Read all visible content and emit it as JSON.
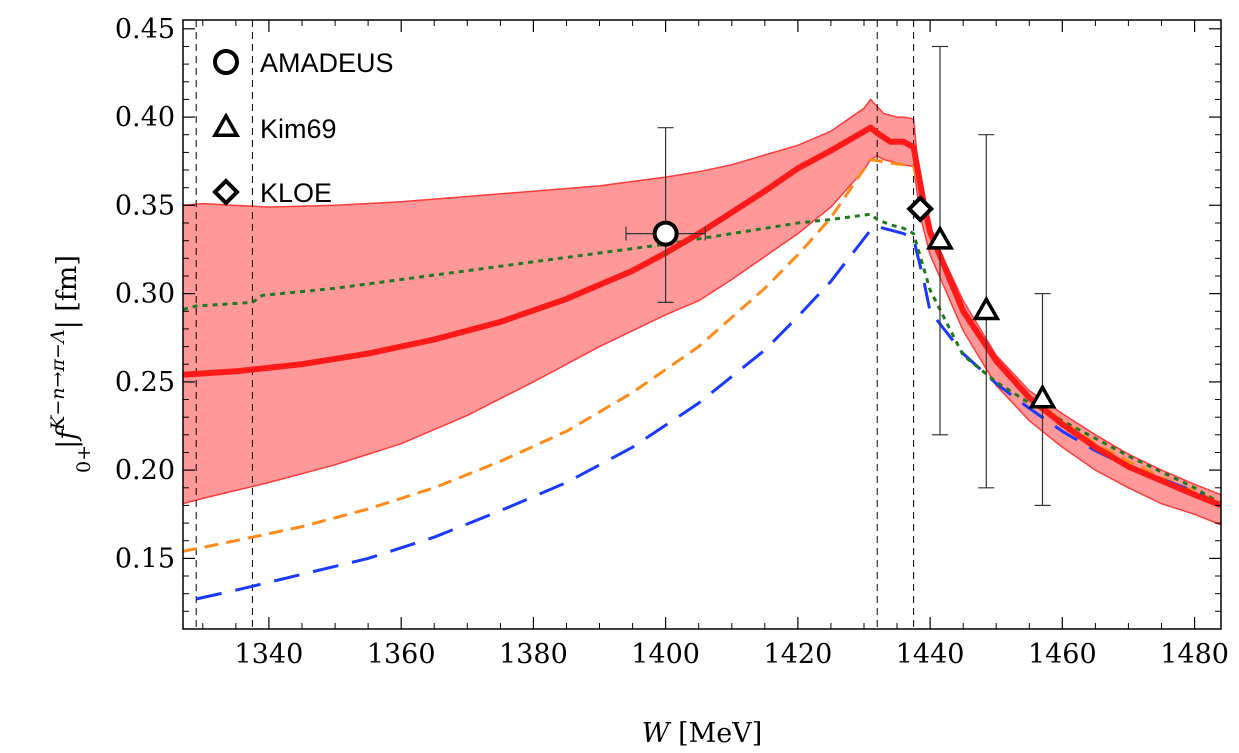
{
  "chart_data": {
    "type": "line",
    "xlabel": "W [MeV]",
    "ylabel": "|f0+K−n→π−Λ| [fm]",
    "ylabel_parts": {
      "pre": "|",
      "f": "f",
      "sub": "0+",
      "sup": "K−n→π−Λ",
      "post": "| [fm]"
    },
    "xlim": [
      1327,
      1484
    ],
    "ylim": [
      0.11,
      0.455
    ],
    "x_ticks": [
      1340,
      1360,
      1380,
      1400,
      1420,
      1440,
      1460,
      1480
    ],
    "y_ticks": [
      0.15,
      0.2,
      0.25,
      0.3,
      0.35,
      0.4,
      0.45
    ],
    "x_tick_labels": [
      "1340",
      "1360",
      "1380",
      "1400",
      "1420",
      "1440",
      "1460",
      "1480"
    ],
    "y_tick_labels": [
      "0.15",
      "0.20",
      "0.25",
      "0.30",
      "0.35",
      "0.40",
      "0.45"
    ],
    "grid": false,
    "legend_position": "top-left",
    "vlines": [
      1329,
      1337.5,
      1432,
      1437.5
    ],
    "band": {
      "color": "#ff9999",
      "edge_color": "#ff3b3b",
      "x": [
        1327,
        1330,
        1340,
        1350,
        1360,
        1370,
        1380,
        1390,
        1400,
        1405,
        1410,
        1420,
        1425,
        1430,
        1431,
        1432,
        1433,
        1435,
        1436,
        1437.5,
        1438.5,
        1440,
        1445,
        1450,
        1455,
        1460,
        1465,
        1470,
        1475,
        1480,
        1484
      ],
      "upper": [
        0.35,
        0.351,
        0.349,
        0.35,
        0.352,
        0.355,
        0.358,
        0.361,
        0.366,
        0.369,
        0.373,
        0.384,
        0.392,
        0.405,
        0.41,
        0.406,
        0.402,
        0.4,
        0.4,
        0.399,
        0.36,
        0.336,
        0.296,
        0.265,
        0.245,
        0.232,
        0.22,
        0.209,
        0.2,
        0.192,
        0.186
      ],
      "lower": [
        0.181,
        0.184,
        0.193,
        0.203,
        0.215,
        0.231,
        0.25,
        0.27,
        0.288,
        0.296,
        0.308,
        0.334,
        0.349,
        0.37,
        0.376,
        0.378,
        0.376,
        0.374,
        0.373,
        0.372,
        0.344,
        0.322,
        0.279,
        0.248,
        0.228,
        0.213,
        0.2,
        0.19,
        0.181,
        0.175,
        0.169
      ]
    },
    "series": [
      {
        "color": "#ff1a1a",
        "dash": "solid",
        "width": 6,
        "x": [
          1327,
          1335,
          1345,
          1355,
          1365,
          1375,
          1385,
          1395,
          1400,
          1405,
          1410,
          1415,
          1420,
          1425,
          1431,
          1432,
          1434,
          1436,
          1437.5,
          1439,
          1440,
          1445,
          1450,
          1455,
          1460,
          1465,
          1470,
          1475,
          1480,
          1484
        ],
        "y": [
          0.254,
          0.256,
          0.26,
          0.266,
          0.274,
          0.284,
          0.297,
          0.313,
          0.323,
          0.334,
          0.346,
          0.358,
          0.371,
          0.381,
          0.394,
          0.391,
          0.386,
          0.386,
          0.383,
          0.352,
          0.335,
          0.29,
          0.262,
          0.241,
          0.226,
          0.213,
          0.202,
          0.194,
          0.186,
          0.18
        ]
      },
      {
        "color": "#ff8c1a",
        "dash": "14,8",
        "width": 3,
        "x": [
          1327,
          1335,
          1345,
          1355,
          1365,
          1375,
          1385,
          1395,
          1405,
          1415,
          1420,
          1425,
          1431,
          1434,
          1436,
          1437.5,
          1439,
          1440,
          1445,
          1450,
          1455,
          1460,
          1465,
          1470,
          1475,
          1480,
          1484
        ],
        "y": [
          0.154,
          0.16,
          0.168,
          0.178,
          0.19,
          0.205,
          0.222,
          0.244,
          0.27,
          0.303,
          0.322,
          0.343,
          0.376,
          0.374,
          0.373,
          0.372,
          0.35,
          0.332,
          0.29,
          0.262,
          0.242,
          0.228,
          0.215,
          0.205,
          0.196,
          0.188,
          0.182
        ]
      },
      {
        "color": "#1a3aff",
        "dash": "26,14",
        "width": 3,
        "x": [
          1329,
          1335,
          1345,
          1355,
          1365,
          1375,
          1385,
          1395,
          1405,
          1415,
          1420,
          1425,
          1431,
          1432,
          1434,
          1436,
          1437.5,
          1439,
          1440,
          1445,
          1450,
          1455,
          1460,
          1465,
          1470,
          1475,
          1480,
          1484
        ],
        "y": [
          0.127,
          0.132,
          0.141,
          0.15,
          0.162,
          0.177,
          0.193,
          0.213,
          0.238,
          0.268,
          0.287,
          0.307,
          0.336,
          0.338,
          0.336,
          0.334,
          0.331,
          0.308,
          0.29,
          0.266,
          0.249,
          0.235,
          0.222,
          0.211,
          0.202,
          0.195,
          0.188,
          0.18
        ]
      },
      {
        "color": "#1f7a1f",
        "dash": "5,5",
        "width": 3,
        "x": [
          1327,
          1329,
          1337.5,
          1339,
          1350,
          1360,
          1370,
          1380,
          1390,
          1400,
          1410,
          1420,
          1425,
          1431,
          1432,
          1434,
          1436,
          1437.5,
          1440,
          1445,
          1450,
          1455,
          1460,
          1465,
          1470,
          1475,
          1480,
          1484
        ],
        "y": [
          0.291,
          0.293,
          0.295,
          0.299,
          0.303,
          0.308,
          0.313,
          0.318,
          0.323,
          0.328,
          0.334,
          0.34,
          0.342,
          0.345,
          0.342,
          0.339,
          0.337,
          0.334,
          0.302,
          0.265,
          0.25,
          0.238,
          0.228,
          0.218,
          0.208,
          0.199,
          0.19,
          0.181
        ]
      }
    ],
    "data_points": [
      {
        "name": "AMADEUS",
        "marker": "circle",
        "points": [
          {
            "x": 1400,
            "y": 0.334,
            "yerr_low": 0.295,
            "yerr_high": 0.394,
            "xerr_low": 1394,
            "xerr_high": 1406
          }
        ]
      },
      {
        "name": "Kim69",
        "marker": "triangle",
        "points": [
          {
            "x": 1441.5,
            "y": 0.33,
            "yerr_low": 0.22,
            "yerr_high": 0.44
          },
          {
            "x": 1448.5,
            "y": 0.29,
            "yerr_low": 0.19,
            "yerr_high": 0.39
          },
          {
            "x": 1457,
            "y": 0.24,
            "yerr_low": 0.18,
            "yerr_high": 0.3
          }
        ]
      },
      {
        "name": "KLOE",
        "marker": "diamond",
        "points": [
          {
            "x": 1438.5,
            "y": 0.348
          }
        ]
      }
    ]
  }
}
